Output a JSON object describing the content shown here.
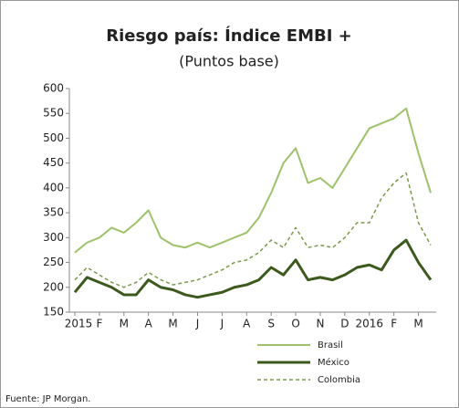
{
  "chart_data": {
    "type": "line",
    "title": "Riesgo país: Índice EMBI +",
    "subtitle": "(Puntos base)",
    "source": "Fuente: JP Morgan.",
    "categories": [
      "2015",
      null,
      "F",
      null,
      "M",
      null,
      "A",
      null,
      "M",
      null,
      "J",
      null,
      "J",
      null,
      "A",
      null,
      "S",
      null,
      "O",
      null,
      "N",
      null,
      "D",
      null,
      "2016",
      null,
      "F",
      null,
      "M",
      null
    ],
    "series": [
      {
        "name": "Brasil",
        "color": "#9dc26b",
        "style": "solid",
        "width": 2,
        "values": [
          270,
          290,
          300,
          320,
          310,
          330,
          355,
          300,
          285,
          280,
          290,
          280,
          290,
          300,
          310,
          340,
          390,
          450,
          480,
          410,
          420,
          400,
          440,
          480,
          520,
          530,
          540,
          560,
          470,
          390
        ]
      },
      {
        "name": "México",
        "color": "#3d5a1e",
        "style": "solid",
        "width": 3,
        "values": [
          190,
          220,
          210,
          200,
          185,
          185,
          215,
          200,
          195,
          185,
          180,
          185,
          190,
          200,
          205,
          215,
          240,
          225,
          255,
          215,
          220,
          215,
          225,
          240,
          245,
          235,
          275,
          295,
          250,
          215
        ]
      },
      {
        "name": "Colombia",
        "color": "#7a9a4a",
        "style": "dashed",
        "width": 1.5,
        "values": [
          215,
          240,
          225,
          210,
          200,
          210,
          230,
          215,
          205,
          210,
          215,
          225,
          235,
          250,
          255,
          270,
          295,
          280,
          320,
          280,
          285,
          280,
          300,
          330,
          330,
          380,
          410,
          430,
          330,
          285
        ]
      }
    ],
    "ylim": [
      150,
      600
    ],
    "yticks": [
      150,
      200,
      250,
      300,
      350,
      400,
      450,
      500,
      550,
      600
    ],
    "legend": "bottom"
  }
}
